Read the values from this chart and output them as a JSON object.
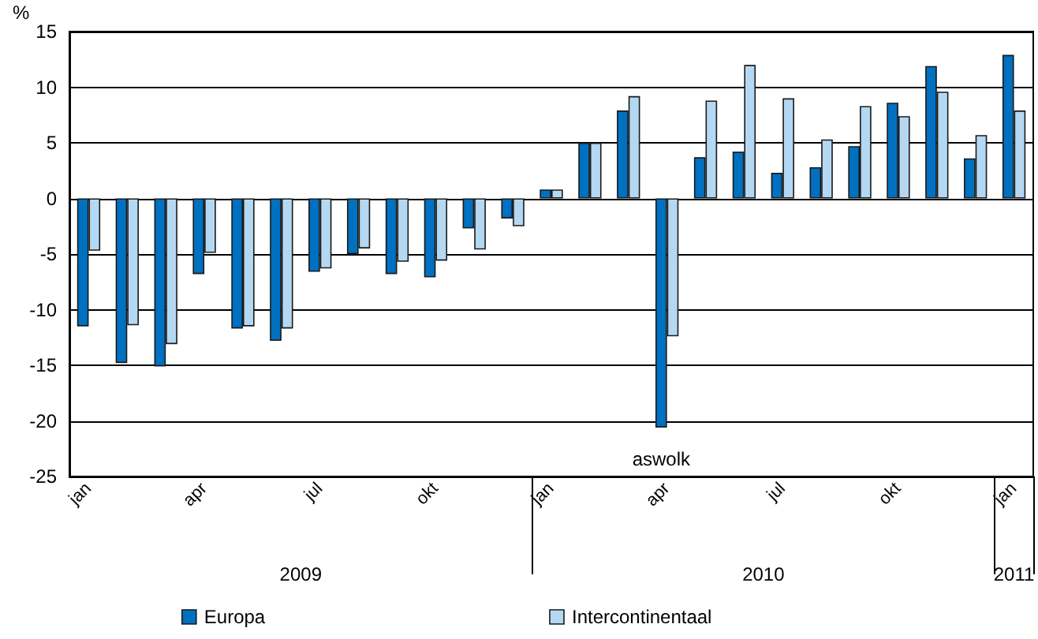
{
  "chart_data": {
    "type": "bar",
    "ylabel": "%",
    "categories": [
      "jan",
      null,
      null,
      "apr",
      null,
      null,
      "jul",
      null,
      null,
      "okt",
      null,
      null,
      "jan",
      null,
      null,
      "apr",
      null,
      null,
      "jul",
      null,
      null,
      "okt",
      null,
      null,
      "jan"
    ],
    "series": [
      {
        "name": "Europa",
        "color": "#0070c0",
        "values": [
          -11.5,
          -14.8,
          -15.1,
          -6.8,
          -11.7,
          -12.8,
          -6.6,
          -5.0,
          -6.8,
          -7.1,
          -2.7,
          -1.8,
          0.8,
          5.0,
          7.9,
          -20.6,
          3.7,
          4.2,
          2.3,
          2.8,
          4.7,
          8.6,
          11.9,
          3.6,
          12.9
        ]
      },
      {
        "name": "Intercontinentaal",
        "color": "#b4d8f2",
        "values": [
          -4.7,
          -11.4,
          -13.1,
          -4.9,
          -11.5,
          -11.7,
          -6.3,
          -4.5,
          -5.7,
          -5.6,
          -4.6,
          -2.5,
          0.8,
          5.0,
          9.2,
          -12.4,
          8.8,
          12.0,
          9.0,
          5.3,
          8.3,
          7.4,
          9.6,
          5.7,
          7.9
        ]
      }
    ],
    "ylim": [
      -25,
      15
    ],
    "yticks": [
      -25,
      -20,
      -15,
      -10,
      -5,
      0,
      5,
      10,
      15
    ],
    "grid": "y",
    "legend": "bottom",
    "annotations": [
      "aswolk",
      "2009",
      "2010",
      "2011"
    ]
  }
}
